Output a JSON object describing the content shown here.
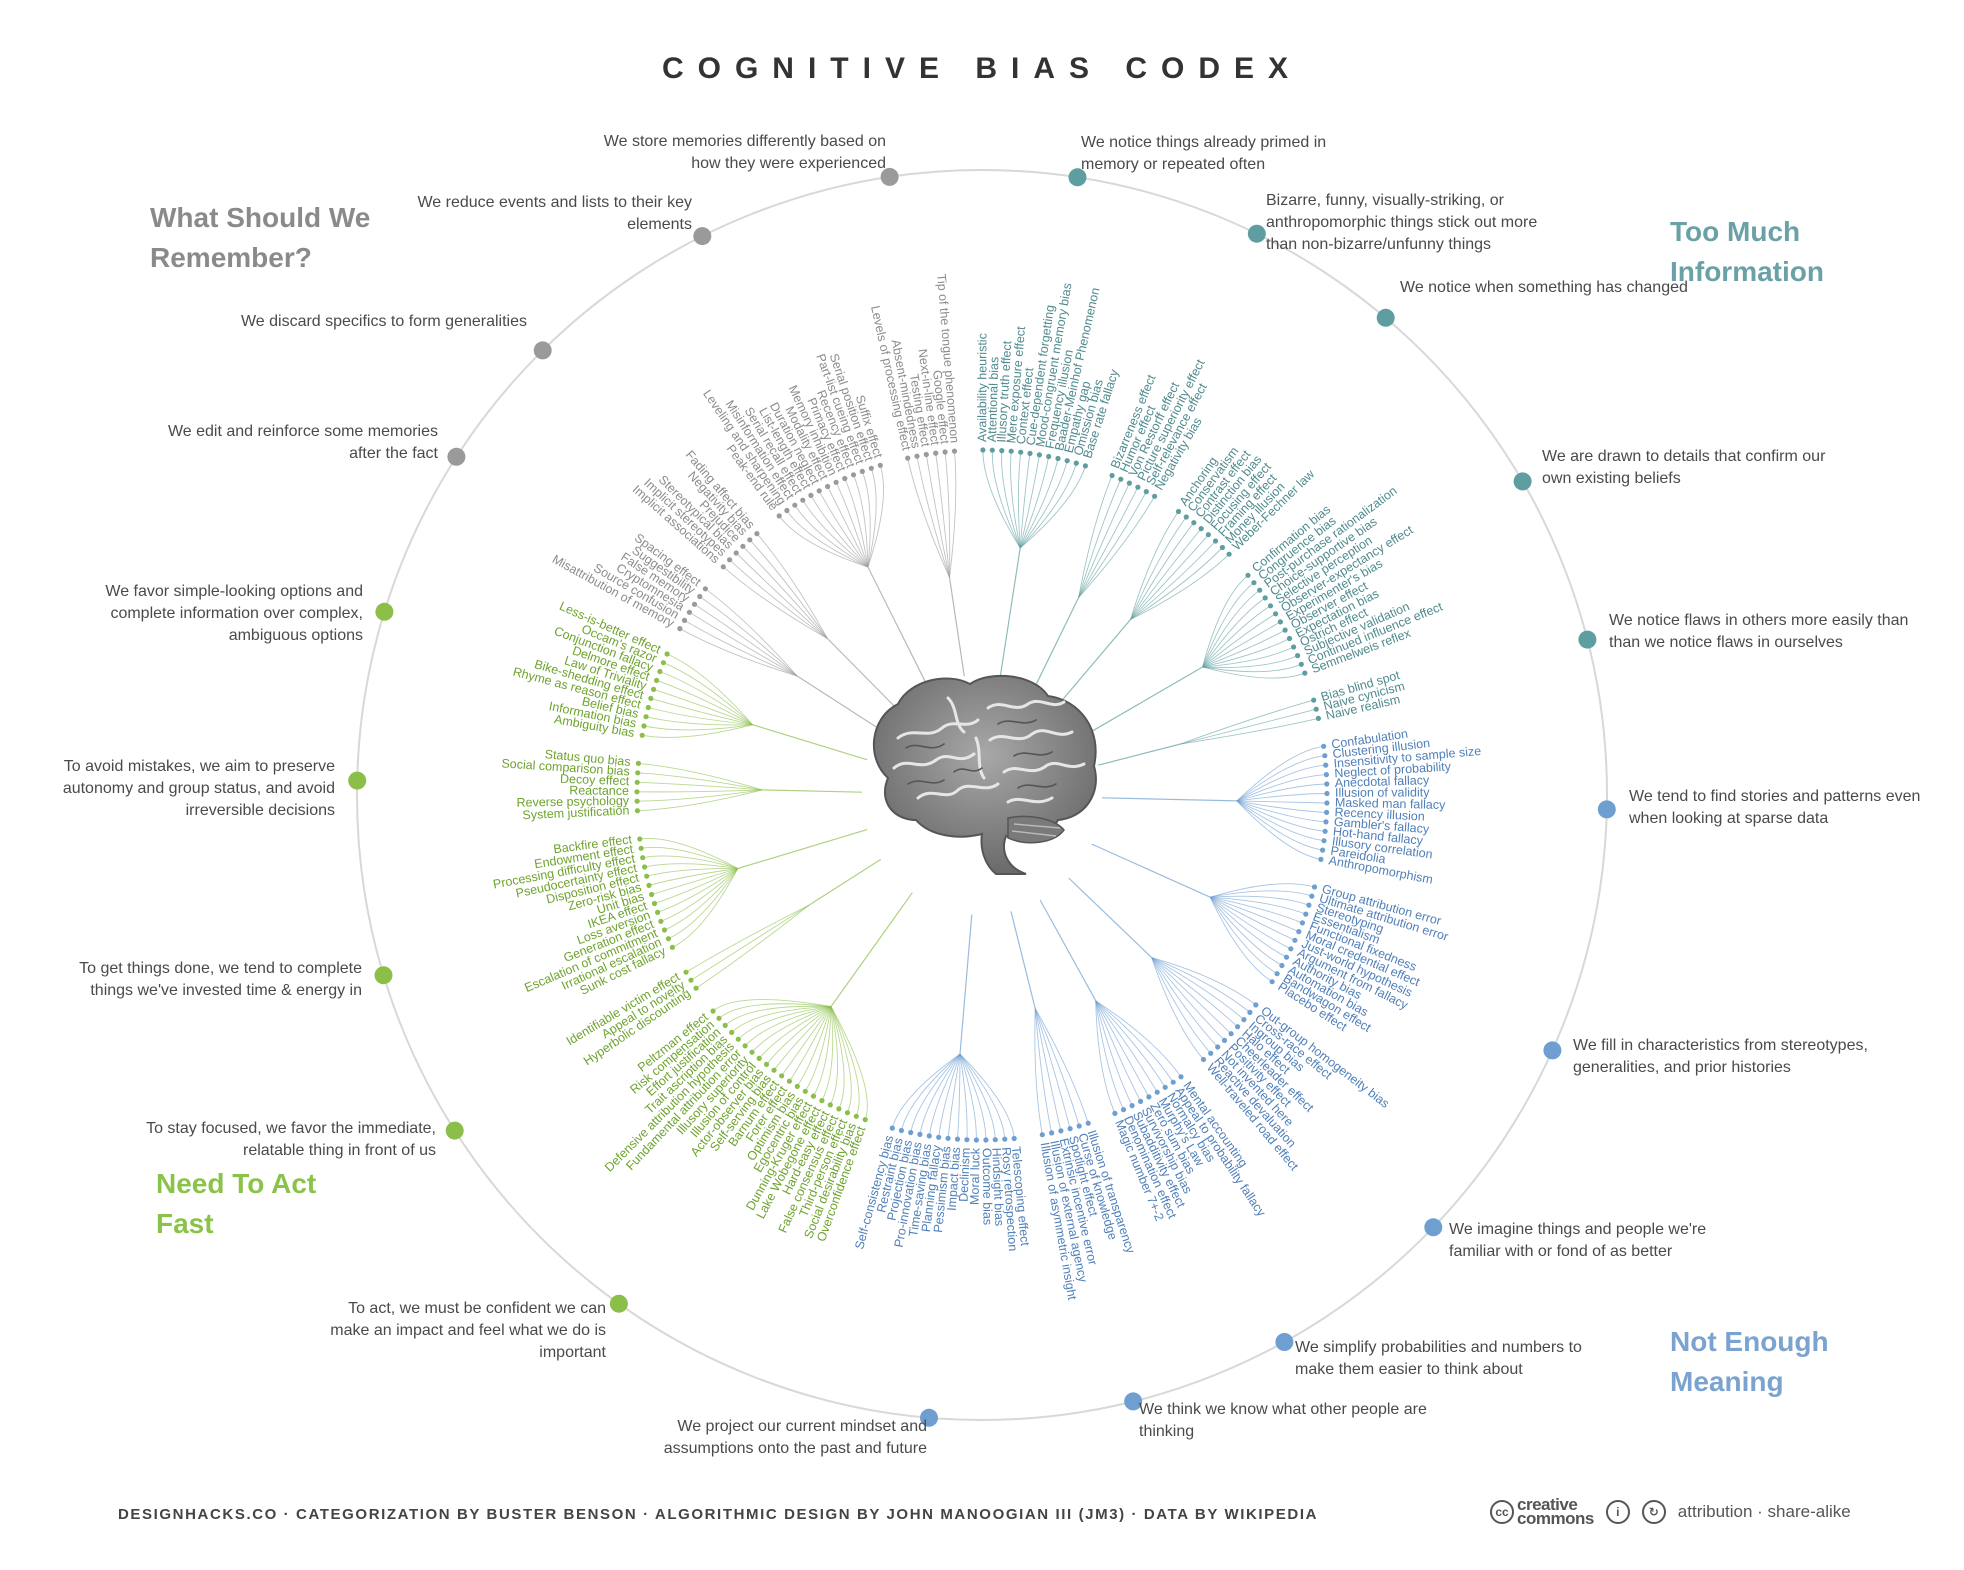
{
  "title": "COGNITIVE BIAS CODEX",
  "quadrants": [
    {
      "id": "remember",
      "label": "What Should We Remember?",
      "color": "#8a8a8a"
    },
    {
      "id": "info",
      "label": "Too Much Information",
      "color": "#6aa1a6"
    },
    {
      "id": "meaning",
      "label": "Not Enough Meaning",
      "color": "#7ba3cf"
    },
    {
      "id": "fast",
      "label": "Need To Act Fast",
      "color": "#8bc24a"
    }
  ],
  "colors": {
    "remember": "#9a9a9a",
    "info": "#5f9ea0",
    "meaning": "#6e9fd0",
    "fast": "#8bbf4a",
    "ring": "#d8d8d8"
  },
  "categories": [
    {
      "text": "We store memories differently based on how they were experienced",
      "group": "remember",
      "biases": [
        "Tip of the tongue phenomenon",
        "Google effect",
        "Next-in-line effect",
        "Testing effect",
        "Absent-mindedness",
        "Levels of processing effect"
      ]
    },
    {
      "text": "We reduce events and lists to their key elements",
      "group": "remember",
      "biases": [
        "Suffix effect",
        "Serial position effect",
        "Part-list cueing effect",
        "Recency effect",
        "Primacy effect",
        "Memory inhibition",
        "Modality effect",
        "Duration neglect",
        "List-length effect",
        "Serial recall effect",
        "Misinformation effect",
        "Leveling and sharpening",
        "Peak-end rule"
      ]
    },
    {
      "text": "We discard specifics to form generalities",
      "group": "remember",
      "biases": [
        "Fading affect bias",
        "Negativity bias",
        "Prejudice",
        "Stereotypical bias",
        "Implicit stereotypes",
        "Implicit associations"
      ]
    },
    {
      "text": "We edit and reinforce some memories after the fact",
      "group": "remember",
      "biases": [
        "Spacing effect",
        "Suggestibility",
        "False memory",
        "Cryptomnesia",
        "Source confusion",
        "Misattribution of memory"
      ]
    },
    {
      "text": "We favor simple-looking options and complete information over complex, ambiguous options",
      "group": "fast",
      "biases": [
        "Less-is-better effect",
        "Occam's razor",
        "Conjunction fallacy",
        "Delmore effect",
        "Law of Triviality",
        "Bike-shedding effect",
        "Rhyme as reason effect",
        "Belief bias",
        "Information bias",
        "Ambiguity bias"
      ]
    },
    {
      "text": "To avoid mistakes, we aim to preserve autonomy and group status, and avoid irreversible decisions",
      "group": "fast",
      "biases": [
        "Status quo bias",
        "Social comparison bias",
        "Decoy effect",
        "Reactance",
        "Reverse psychology",
        "System justification"
      ]
    },
    {
      "text": "To get things done, we tend to complete things we've invested time & energy in",
      "group": "fast",
      "biases": [
        "Backfire effect",
        "Endowment effect",
        "Processing difficulty effect",
        "Pseudocertainty effect",
        "Disposition effect",
        "Zero-risk bias",
        "Unit bias",
        "IKEA effect",
        "Loss aversion",
        "Generation effect",
        "Escalation of commitment",
        "Irrational escalation",
        "Sunk cost fallacy"
      ]
    },
    {
      "text": "To stay focused, we favor the immediate, relatable thing in front of us",
      "group": "fast",
      "biases": [
        "Identifiable victim effect",
        "Appeal to novelty",
        "Hyperbolic discounting"
      ]
    },
    {
      "text": "To act, we must be confident we can make an impact and feel what we do is important",
      "group": "fast",
      "biases": [
        "Peltzman effect",
        "Risk compensation",
        "Effort justification",
        "Trait ascription bias",
        "Defensive attribution hypothesis",
        "Fundamental attribution error",
        "Illusory superiority",
        "Illusion of control",
        "Actor-observer bias",
        "Self-serving bias",
        "Barnum effect",
        "Forer effect",
        "Optimism bias",
        "Egocentric bias",
        "Dunning-Kruger effect",
        "Lake Wobegone effect",
        "Hard-easy effect",
        "False consensus effect",
        "Third-person effect",
        "Social desirability bias",
        "Overconfidence effect"
      ]
    },
    {
      "text": "We project our current mindset and assumptions onto the past and future",
      "group": "meaning",
      "biases": [
        "Self-consistency bias",
        "Restraint bias",
        "Projection bias",
        "Pro-innovation bias",
        "Time-saving bias",
        "Planning fallacy",
        "Pessimism bias",
        "Impact bias",
        "Declinism",
        "Moral luck",
        "Outcome bias",
        "Hindsight bias",
        "Rosy retrospection",
        "Telescoping effect"
      ]
    },
    {
      "text": "We think we know what other people are thinking",
      "group": "meaning",
      "biases": [
        "Illusion of asymmetric insight",
        "Illusion of external agency",
        "Extrinsic incentive error",
        "Spotlight effect",
        "Curse of knowledge",
        "Illusion of transparency"
      ]
    },
    {
      "text": "We simplify probabilities and numbers to make them easier to think about",
      "group": "meaning",
      "biases": [
        "Magic number 7+-2",
        "Denomination effect",
        "Subadditivity effect",
        "Survivorship bias",
        "Zero sum bias",
        "Murphy's Law",
        "Normalcy bias",
        "Appeal to probability fallacy",
        "Mental accounting"
      ]
    },
    {
      "text": "We imagine things and people we're familiar with or fond of as better",
      "group": "meaning",
      "biases": [
        "Well-traveled road effect",
        "Reactive devaluation",
        "Not invented here",
        "Positivity effect",
        "Cheerleader effect",
        "Halo effect",
        "Ingroup bias",
        "Cross-race effect",
        "Out-group homogeneity bias"
      ]
    },
    {
      "text": "We fill in characteristics from stereotypes, generalities, and prior histories",
      "group": "meaning",
      "biases": [
        "Placebo effect",
        "Bandwagon effect",
        "Automation bias",
        "Authority bias",
        "Argument from fallacy",
        "Just-world hypothesis",
        "Moral credential effect",
        "Functional fixedness",
        "Essentialism",
        "Stereotyping",
        "Ultimate attribution error",
        "Group attribution error"
      ]
    },
    {
      "text": "We tend to find stories and patterns even when looking at sparse data",
      "group": "meaning",
      "biases": [
        "Anthropomorphism",
        "Pareidolia",
        "Illusory correlation",
        "Hot-hand fallacy",
        "Gambler's fallacy",
        "Recency illusion",
        "Masked man fallacy",
        "Illusion of validity",
        "Anecdotal fallacy",
        "Neglect of probability",
        "Insensitivity to sample size",
        "Clustering illusion",
        "Confabulation"
      ]
    },
    {
      "text": "We notice flaws in others more easily than than we notice flaws in ourselves",
      "group": "info",
      "biases": [
        "Naive realism",
        "Naive cynicism",
        "Bias blind spot"
      ]
    },
    {
      "text": "We are drawn to details that confirm our own existing beliefs",
      "group": "info",
      "biases": [
        "Semmelweis reflex",
        "Continued influence effect",
        "Subjective validation",
        "Ostrich effect",
        "Expectation bias",
        "Observer effect",
        "Experimenter's bias",
        "Observer-expectancy effect",
        "Selective perception",
        "Choice-supportive bias",
        "Post-purchase rationalization",
        "Congruence bias",
        "Confirmation bias"
      ]
    },
    {
      "text": "We notice when something has changed",
      "group": "info",
      "biases": [
        "Weber-Fechner law",
        "Money illusion",
        "Framing effect",
        "Focusing effect",
        "Distinction bias",
        "Contrast effect",
        "Conservatism",
        "Anchoring"
      ]
    },
    {
      "text": "Bizarre, funny, visually-striking, or anthropomorphic things stick out more than non-bizarre/unfunny things",
      "group": "info",
      "biases": [
        "Negativity bias",
        "Self-relevance effect",
        "Picture superiority effect",
        "Von Restorff effect",
        "Humor effect",
        "Bizarreness effect"
      ]
    },
    {
      "text": "We notice things already primed in memory or repeated often",
      "group": "info",
      "biases": [
        "Base rate fallacy",
        "Omission bias",
        "Empathy gap",
        "Baader-Meinhof Phenomenon",
        "Frequency illusion",
        "Mood-congruent memory bias",
        "Cue-dependent forgetting",
        "Context effect",
        "Mere exposure effect",
        "Illusory truth effect",
        "Attentional bias",
        "Availability heuristic"
      ]
    }
  ],
  "footer": {
    "credits": "DESIGNHACKS.CO · CATEGORIZATION BY BUSTER BENSON · ALGORITHMIC DESIGN BY JOHN MANOOGIAN III (JM3) · DATA BY WIKIPEDIA",
    "cc_logo_line1": "creative",
    "cc_logo_line2": "commons",
    "license": "attribution · share-alike"
  }
}
